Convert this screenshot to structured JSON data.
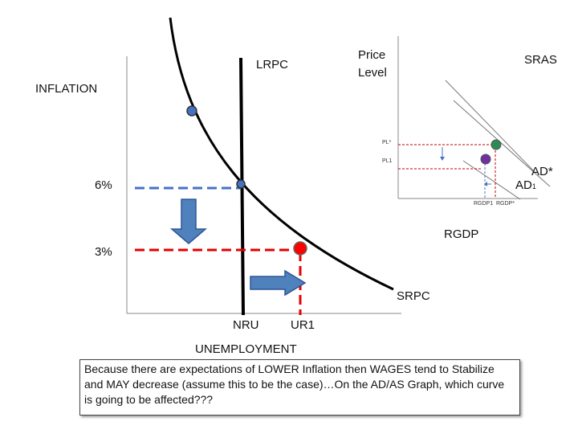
{
  "phillips": {
    "y_axis_label": "INFLATION",
    "x_axis_label": "UNEMPLOYMENT",
    "lrpc_label": "LRPC",
    "srpc_label": "SRPC",
    "nru_label": "NRU",
    "ur1_label": "UR1",
    "inflation_6_label": "6%",
    "inflation_3_label": "3%",
    "colors": {
      "curve": "#000000",
      "blue_dash": "#4472c4",
      "red_dash": "#e60000",
      "arrow": "#4f81bd",
      "point_blue": "#44546a",
      "point_red": "#ff0000"
    }
  },
  "adas": {
    "y_axis_label_line1": "Price",
    "y_axis_label_line2": "Level",
    "x_axis_label": "RGDP",
    "sras_label": "SRAS",
    "ad_star_label": "AD*",
    "ad1_label": "AD",
    "ad1_subscript": "1",
    "pl_star_label": "PL*",
    "pl1_label": "PL1",
    "rgdp1_label": "RGDP1",
    "rgdp_star_label": "RGDP*",
    "colors": {
      "point_green": "#2e8b57",
      "point_purple": "#7030a0",
      "guide_red": "#c00000",
      "guide_blue": "#4472c4"
    }
  },
  "caption": {
    "text": "Because there are expectations of LOWER Inflation then  WAGES tend to Stabilize and MAY decrease (assume this to be the case)…On the AD/AS Graph, which curve is going to be affected???"
  }
}
